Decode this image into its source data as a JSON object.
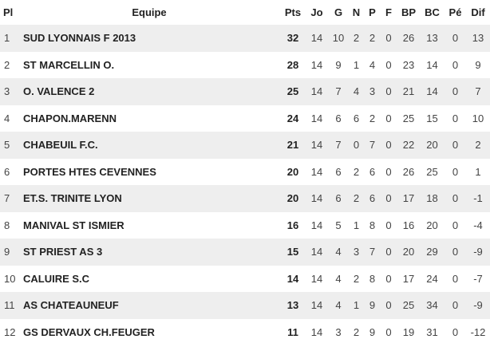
{
  "headers": [
    "Pl",
    "Equipe",
    "Pts",
    "Jo",
    "G",
    "N",
    "P",
    "F",
    "BP",
    "BC",
    "Pé",
    "Dif"
  ],
  "rows": [
    [
      "1",
      "SUD LYONNAIS F 2013",
      "32",
      "14",
      "10",
      "2",
      "2",
      "0",
      "26",
      "13",
      "0",
      "13"
    ],
    [
      "2",
      "ST MARCELLIN O.",
      "28",
      "14",
      "9",
      "1",
      "4",
      "0",
      "23",
      "14",
      "0",
      "9"
    ],
    [
      "3",
      "O. VALENCE 2",
      "25",
      "14",
      "7",
      "4",
      "3",
      "0",
      "21",
      "14",
      "0",
      "7"
    ],
    [
      "4",
      "CHAPON.MARENN",
      "24",
      "14",
      "6",
      "6",
      "2",
      "0",
      "25",
      "15",
      "0",
      "10"
    ],
    [
      "5",
      "CHABEUIL F.C.",
      "21",
      "14",
      "7",
      "0",
      "7",
      "0",
      "22",
      "20",
      "0",
      "2"
    ],
    [
      "6",
      "PORTES HTES CEVENNES",
      "20",
      "14",
      "6",
      "2",
      "6",
      "0",
      "26",
      "25",
      "0",
      "1"
    ],
    [
      "7",
      "ET.S. TRINITE LYON",
      "20",
      "14",
      "6",
      "2",
      "6",
      "0",
      "17",
      "18",
      "0",
      "-1"
    ],
    [
      "8",
      "MANIVAL ST ISMIER",
      "16",
      "14",
      "5",
      "1",
      "8",
      "0",
      "16",
      "20",
      "0",
      "-4"
    ],
    [
      "9",
      "ST PRIEST AS 3",
      "15",
      "14",
      "4",
      "3",
      "7",
      "0",
      "20",
      "29",
      "0",
      "-9"
    ],
    [
      "10",
      "CALUIRE S.C",
      "14",
      "14",
      "4",
      "2",
      "8",
      "0",
      "17",
      "24",
      "0",
      "-7"
    ],
    [
      "11",
      "AS CHATEAUNEUF",
      "13",
      "14",
      "4",
      "1",
      "9",
      "0",
      "25",
      "34",
      "0",
      "-9"
    ],
    [
      "12",
      "GS DERVAUX CH.FEUGER",
      "11",
      "14",
      "3",
      "2",
      "9",
      "0",
      "19",
      "31",
      "0",
      "-12"
    ]
  ],
  "colors": {
    "stripe": "#eeeeee",
    "text": "#222222"
  }
}
